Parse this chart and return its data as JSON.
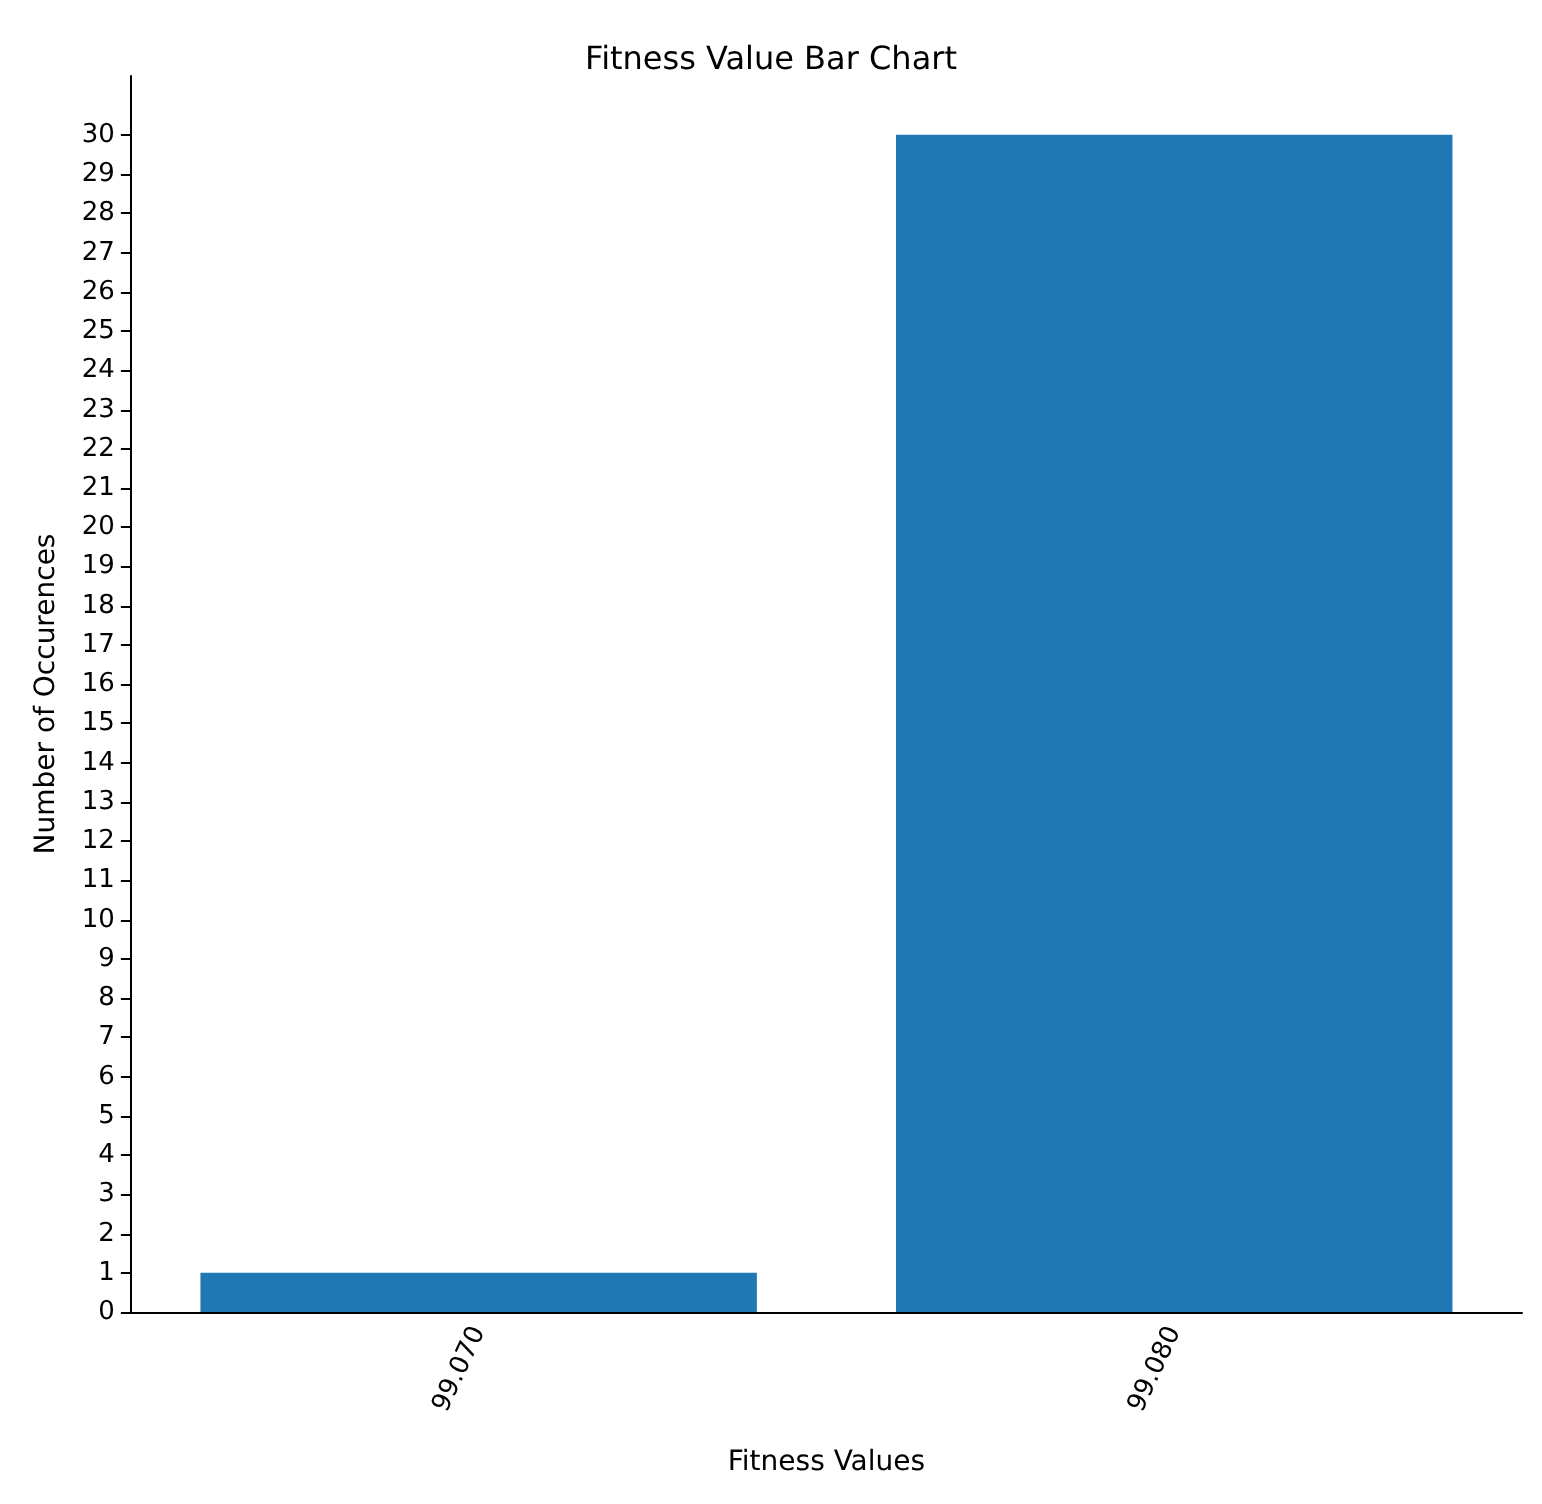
{
  "chart_data": {
    "type": "bar",
    "title": "Fitness Value Bar Chart",
    "xlabel": "Fitness Values",
    "ylabel": "Number of Occurences",
    "categories": [
      "99.070",
      "99.080"
    ],
    "values": [
      1,
      30
    ],
    "color": "#1f77b4",
    "ylim": [
      0,
      31.5
    ],
    "yticks": [
      0,
      1,
      2,
      3,
      4,
      5,
      6,
      7,
      8,
      9,
      10,
      11,
      12,
      13,
      14,
      15,
      16,
      17,
      18,
      19,
      20,
      21,
      22,
      23,
      24,
      25,
      26,
      27,
      28,
      29,
      30
    ],
    "grid": false
  }
}
